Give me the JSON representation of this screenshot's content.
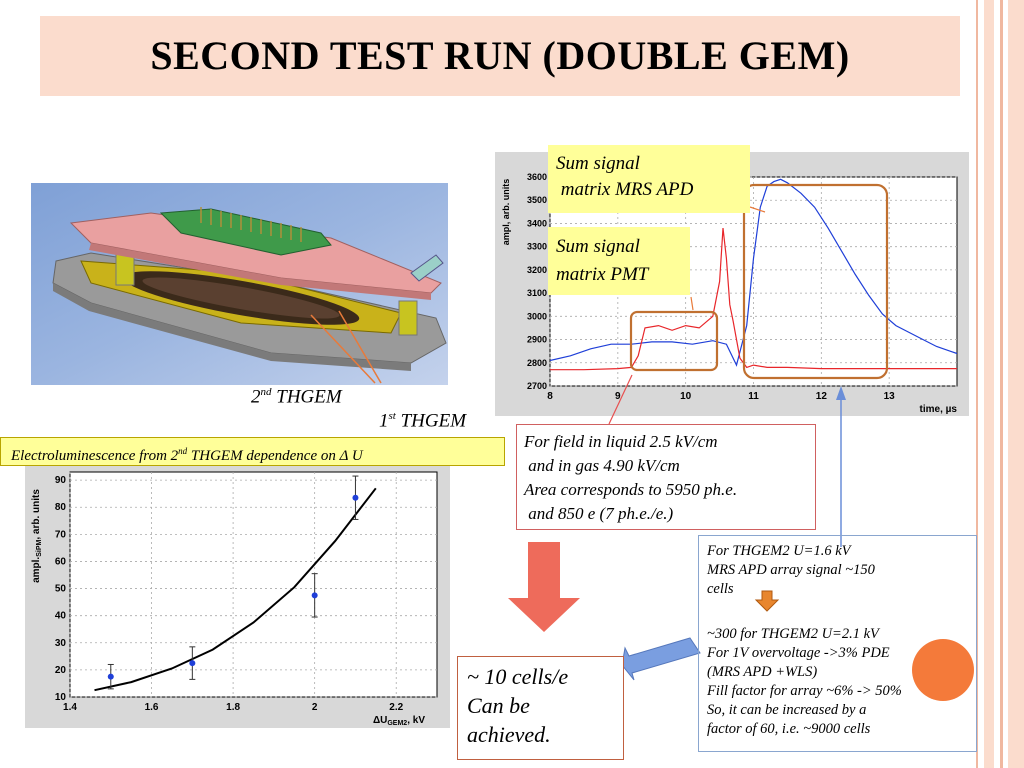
{
  "slide": {
    "title": "SECOND TEST RUN (DOUBLE GEM)",
    "labels": {
      "thgem2_num": "2",
      "thgem2_sup": "nd",
      "thgem2_text": "THGEM",
      "thgem1_num": "1",
      "thgem1_sup": "st",
      "thgem1_text": "THGEM"
    },
    "banner": {
      "pre": "Electroluminescence from 2",
      "sup": "nd",
      "post": " THGEM dependence on Δ U"
    },
    "callouts": {
      "apd_line1": "Sum signal",
      "apd_line2": " matrix MRS APD",
      "pmt_line1": "Sum signal",
      "pmt_line2": "matrix PMT"
    },
    "field_note": [
      "For field in liquid 2.5 kV/cm",
      " and in gas 4.90 kV/cm",
      "Area corresponds to 5950 ph.e.",
      " and 850 e (7 ph.e./e.)"
    ],
    "thgem_note": {
      "para1": [
        "For THGEM2 U=1.6 kV",
        "MRS APD array signal ~150",
        "cells"
      ],
      "para2": [
        "~300 for THGEM2 U=2.1 kV",
        "For 1V overvoltage ->3% PDE",
        "(MRS APD +WLS)",
        "Fill factor for array ~6% -> 50%",
        "So, it can be increased by a",
        "factor of 60, i.e. ~9000 cells"
      ]
    },
    "result_note": [
      "~ 10 cells/e",
      "Can be",
      "achieved."
    ]
  },
  "chart_data": [
    {
      "type": "line",
      "ylabel": "ampl, arb. units",
      "xlabel": "time, µs",
      "xlim": [
        8,
        14
      ],
      "ylim": [
        2700,
        3600
      ],
      "xticks": [
        "8",
        "9",
        "10",
        "11",
        "12",
        "13"
      ],
      "yticks": [
        "2700",
        "2800",
        "2900",
        "3000",
        "3100",
        "3200",
        "3300",
        "3400",
        "3500",
        "3600"
      ],
      "series": [
        {
          "color": "#1f3fd8",
          "x": [
            8.0,
            8.3,
            8.6,
            8.9,
            9.2,
            9.5,
            9.8,
            10.1,
            10.4,
            10.6,
            10.75,
            10.9,
            11.0,
            11.1,
            11.2,
            11.3,
            11.4,
            11.5,
            11.7,
            11.9,
            12.1,
            12.3,
            12.5,
            12.7,
            12.9,
            13.1,
            13.3,
            13.5,
            13.7,
            13.9,
            14.0
          ],
          "y": [
            2810,
            2830,
            2860,
            2880,
            2880,
            2890,
            2890,
            2880,
            2895,
            2880,
            2790,
            2960,
            3250,
            3470,
            3560,
            3580,
            3590,
            3575,
            3530,
            3470,
            3380,
            3280,
            3180,
            3090,
            3010,
            2960,
            2930,
            2900,
            2870,
            2850,
            2840
          ]
        },
        {
          "color": "#e8262a",
          "x": [
            8.0,
            8.5,
            9.0,
            9.2,
            9.3,
            9.4,
            9.6,
            9.8,
            10.0,
            10.2,
            10.4,
            10.5,
            10.55,
            10.6,
            10.65,
            10.7,
            10.8,
            10.9,
            11.0,
            11.2,
            11.5,
            12.0,
            12.5,
            13.0,
            13.5,
            14.0
          ],
          "y": [
            2770,
            2770,
            2775,
            2780,
            2830,
            2950,
            2960,
            2940,
            2960,
            2950,
            3000,
            3150,
            3380,
            3250,
            3050,
            2980,
            2820,
            2780,
            2790,
            2780,
            2780,
            2775,
            2775,
            2775,
            2775,
            2775
          ]
        }
      ]
    },
    {
      "type": "scatter",
      "xlabel": "ΔU",
      "xlabel_sub": "GEM2",
      "xlabel_unit": ", kV",
      "ylabel": "ampl.",
      "ylabel_sub": "SiPM",
      "ylabel_unit": ", arb. units",
      "xlim": [
        1.4,
        2.3
      ],
      "ylim": [
        10,
        93
      ],
      "xticks": [
        "1.4",
        "1.6",
        "1.8",
        "2",
        "2.2"
      ],
      "yticks": [
        "10",
        "20",
        "30",
        "40",
        "50",
        "60",
        "70",
        "80",
        "90"
      ],
      "points": [
        {
          "x": 1.5,
          "y": 17.5,
          "err": 4.5
        },
        {
          "x": 1.7,
          "y": 22.5,
          "err": 6.0
        },
        {
          "x": 2.0,
          "y": 47.5,
          "err": 8.0
        },
        {
          "x": 2.1,
          "y": 83.5,
          "err": 8.0
        }
      ],
      "fit": {
        "x": [
          1.46,
          1.55,
          1.65,
          1.75,
          1.85,
          1.95,
          2.05,
          2.15
        ],
        "y": [
          12.5,
          15.5,
          20.5,
          27.5,
          37.5,
          50.5,
          67.5,
          87
        ]
      }
    }
  ]
}
